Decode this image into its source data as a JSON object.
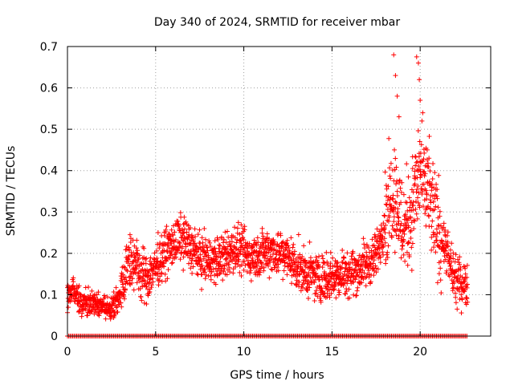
{
  "chart_data": {
    "type": "scatter",
    "title": "Day 340 of 2024, SRMTID for receiver mbar",
    "xlabel": "GPS time / hours",
    "ylabel": "SRMTID / TECUs",
    "xlim": [
      0,
      24
    ],
    "ylim": [
      0,
      0.7
    ],
    "x_ticks": [
      0,
      5,
      10,
      15,
      20
    ],
    "x_tick_labels": [
      "0",
      "5",
      "10",
      "15",
      "20"
    ],
    "y_ticks": [
      0,
      0.1,
      0.2,
      0.3,
      0.4,
      0.5,
      0.6,
      0.7
    ],
    "y_tick_labels": [
      "0",
      "0.1",
      "0.2",
      "0.3",
      "0.4",
      "0.5",
      "0.6",
      "0.7"
    ],
    "grid": true,
    "marker": "+",
    "series_color": "#ff0000",
    "x_range_hours": [
      0,
      22.7
    ],
    "trend": [
      {
        "x": 0.0,
        "y": 0.09
      },
      {
        "x": 0.3,
        "y": 0.12
      },
      {
        "x": 0.7,
        "y": 0.08
      },
      {
        "x": 1.5,
        "y": 0.08
      },
      {
        "x": 2.5,
        "y": 0.06
      },
      {
        "x": 3.0,
        "y": 0.1
      },
      {
        "x": 3.5,
        "y": 0.19
      },
      {
        "x": 4.5,
        "y": 0.14
      },
      {
        "x": 5.5,
        "y": 0.2
      },
      {
        "x": 6.5,
        "y": 0.24
      },
      {
        "x": 7.5,
        "y": 0.19
      },
      {
        "x": 8.5,
        "y": 0.18
      },
      {
        "x": 9.5,
        "y": 0.21
      },
      {
        "x": 10.5,
        "y": 0.19
      },
      {
        "x": 11.5,
        "y": 0.21
      },
      {
        "x": 12.5,
        "y": 0.19
      },
      {
        "x": 13.5,
        "y": 0.15
      },
      {
        "x": 14.5,
        "y": 0.14
      },
      {
        "x": 15.5,
        "y": 0.15
      },
      {
        "x": 16.5,
        "y": 0.16
      },
      {
        "x": 17.5,
        "y": 0.19
      },
      {
        "x": 18.0,
        "y": 0.28
      },
      {
        "x": 18.5,
        "y": 0.36
      },
      {
        "x": 19.0,
        "y": 0.26
      },
      {
        "x": 19.5,
        "y": 0.3
      },
      {
        "x": 20.0,
        "y": 0.4
      },
      {
        "x": 20.5,
        "y": 0.33
      },
      {
        "x": 21.0,
        "y": 0.26
      },
      {
        "x": 21.5,
        "y": 0.2
      },
      {
        "x": 22.0,
        "y": 0.13
      },
      {
        "x": 22.7,
        "y": 0.13
      }
    ],
    "peaks": [
      {
        "x": 18.5,
        "y": 0.68
      },
      {
        "x": 18.6,
        "y": 0.63
      },
      {
        "x": 18.7,
        "y": 0.58
      },
      {
        "x": 18.8,
        "y": 0.53
      },
      {
        "x": 19.8,
        "y": 0.675
      },
      {
        "x": 19.9,
        "y": 0.66
      },
      {
        "x": 19.95,
        "y": 0.62
      },
      {
        "x": 20.0,
        "y": 0.57
      },
      {
        "x": 20.1,
        "y": 0.52
      },
      {
        "x": 20.4,
        "y": 0.45
      },
      {
        "x": 20.5,
        "y": 0.43
      }
    ],
    "zero_line": {
      "y": 0,
      "x_start": 0,
      "x_end": 22.7
    }
  }
}
